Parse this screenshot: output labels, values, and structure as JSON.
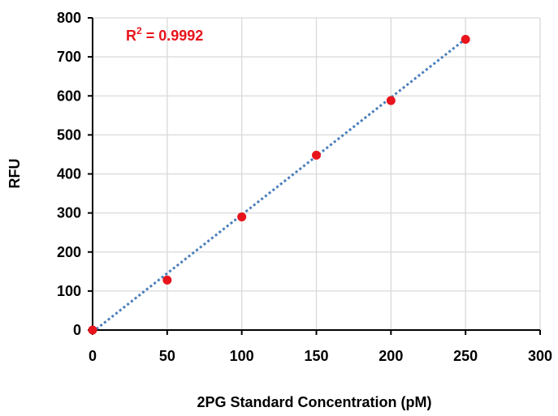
{
  "chart_data": {
    "type": "scatter",
    "title": "",
    "xlabel": "2PG Standard Concentration (pM)",
    "ylabel": "RFU",
    "xlim": [
      0,
      300
    ],
    "ylim": [
      0,
      800
    ],
    "x_ticks": [
      0,
      50,
      100,
      150,
      200,
      250,
      300
    ],
    "y_ticks": [
      0,
      100,
      200,
      300,
      400,
      500,
      600,
      700,
      800
    ],
    "x_tick_labels": [
      "0",
      "50",
      "100",
      "150",
      "200",
      "250",
      "300"
    ],
    "y_tick_labels": [
      "0",
      "100",
      "200",
      "300",
      "400",
      "500",
      "600",
      "700",
      "800"
    ],
    "grid": true,
    "series": [
      {
        "x": [
          0,
          50,
          100,
          150,
          200,
          250
        ],
        "y": [
          0,
          128,
          290,
          448,
          588,
          745
        ],
        "marker_color": "#e8141c"
      }
    ],
    "trendline": {
      "type": "linear",
      "style": "dotted",
      "color": "#4a7ebb",
      "x": [
        0,
        250
      ],
      "y": [
        -5,
        746
      ]
    },
    "annotation": {
      "text": "R",
      "superscript": "2",
      "suffix": " = 0.9992",
      "color": "#e8141c"
    }
  }
}
